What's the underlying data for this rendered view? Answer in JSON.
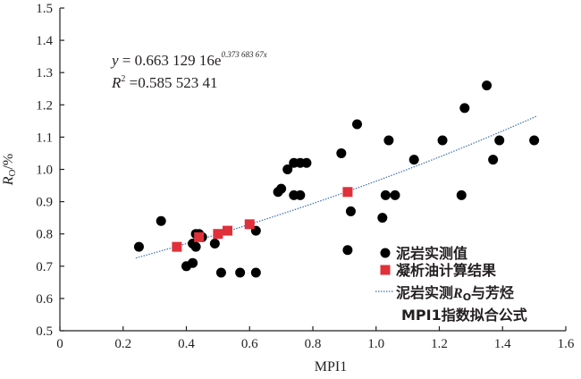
{
  "chart_data": {
    "type": "scatter",
    "xlabel": "MPI1",
    "ylabel": "R",
    "ylabel_sub": "O",
    "ylabel_unit": "/%",
    "xlim": [
      0,
      1.6
    ],
    "ylim": [
      0.5,
      1.5
    ],
    "xticks": [
      "0",
      "0.2",
      "0.4",
      "0.6",
      "0.8",
      "1.0",
      "1.2",
      "1.4",
      "1.6"
    ],
    "yticks": [
      "0.5",
      "0.6",
      "0.7",
      "0.8",
      "0.9",
      "1.0",
      "1.1",
      "1.2",
      "1.3",
      "1.4",
      "1.5"
    ],
    "equation": {
      "lhs": "y",
      "rhs": " = 0.663 129 16e",
      "exponent": "0.373 683 67x",
      "r2_label": "R",
      "r2_sup": "2",
      "r2_value": " =0.585 523 41"
    },
    "fit": {
      "a": 0.66312916,
      "b": 0.37368367,
      "x_range": [
        0.24,
        1.51
      ]
    },
    "series": [
      {
        "name": "泥岩实测值",
        "marker": "circle",
        "color": "#000000",
        "points": [
          [
            0.25,
            0.76
          ],
          [
            0.32,
            0.84
          ],
          [
            0.4,
            0.7
          ],
          [
            0.42,
            0.71
          ],
          [
            0.42,
            0.77
          ],
          [
            0.43,
            0.76
          ],
          [
            0.43,
            0.8
          ],
          [
            0.44,
            0.8
          ],
          [
            0.45,
            0.79
          ],
          [
            0.49,
            0.77
          ],
          [
            0.51,
            0.68
          ],
          [
            0.57,
            0.68
          ],
          [
            0.62,
            0.81
          ],
          [
            0.62,
            0.68
          ],
          [
            0.69,
            0.93
          ],
          [
            0.7,
            0.94
          ],
          [
            0.72,
            1.0
          ],
          [
            0.74,
            1.02
          ],
          [
            0.74,
            0.92
          ],
          [
            0.76,
            1.02
          ],
          [
            0.76,
            0.92
          ],
          [
            0.78,
            1.02
          ],
          [
            0.89,
            1.05
          ],
          [
            0.91,
            0.75
          ],
          [
            0.92,
            0.87
          ],
          [
            0.94,
            1.14
          ],
          [
            1.02,
            0.85
          ],
          [
            1.03,
            0.92
          ],
          [
            1.04,
            1.09
          ],
          [
            1.06,
            0.92
          ],
          [
            1.12,
            1.03
          ],
          [
            1.21,
            1.09
          ],
          [
            1.27,
            0.92
          ],
          [
            1.28,
            1.19
          ],
          [
            1.35,
            1.26
          ],
          [
            1.37,
            1.03
          ],
          [
            1.39,
            1.09
          ],
          [
            1.5,
            1.09
          ]
        ]
      },
      {
        "name": "凝析油计算结果",
        "marker": "square",
        "color": "#e0303a",
        "points": [
          [
            0.37,
            0.76
          ],
          [
            0.44,
            0.79
          ],
          [
            0.5,
            0.8
          ],
          [
            0.53,
            0.81
          ],
          [
            0.6,
            0.83
          ],
          [
            0.91,
            0.93
          ]
        ]
      }
    ],
    "fit_legend": {
      "line1_a": "泥岩实测",
      "line1_r": "R",
      "line1_sub": "O",
      "line1_b": "与芳烃",
      "line2": "MPI1指数拟合公式",
      "color": "#3a6fb5"
    }
  }
}
